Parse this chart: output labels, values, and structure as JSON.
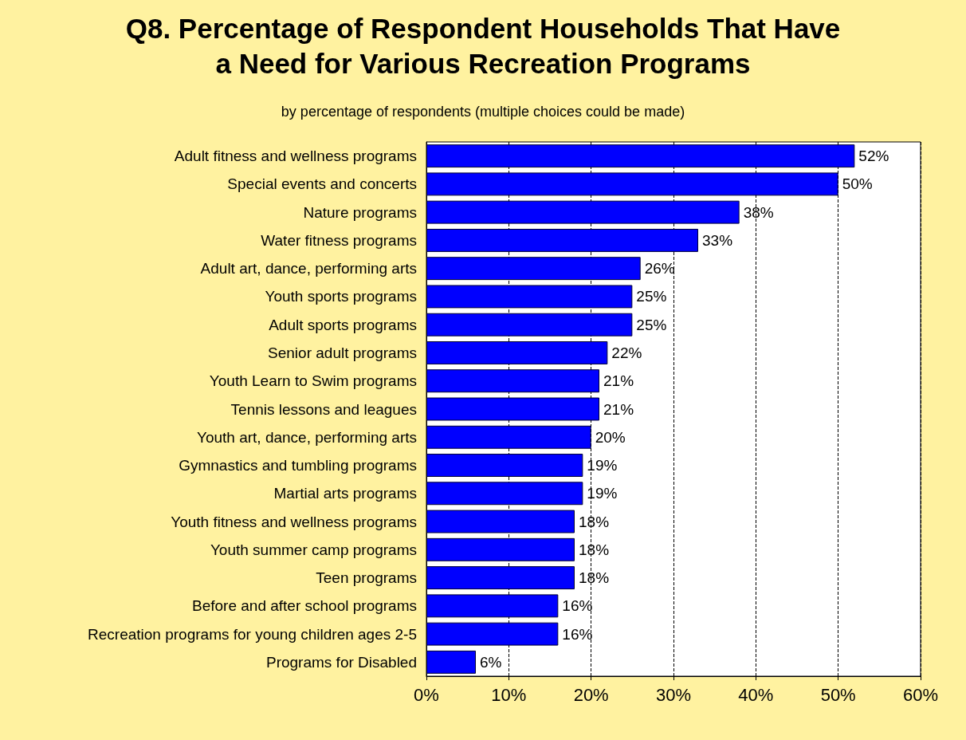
{
  "chart_data": {
    "type": "bar",
    "orientation": "horizontal",
    "title": "Q8. Percentage of Respondent Households That Have\na Need for Various Recreation Programs",
    "subtitle": "by percentage of respondents (multiple choices could be made)",
    "categories": [
      "Adult fitness and wellness programs",
      "Special events and concerts",
      "Nature programs",
      "Water fitness programs",
      "Adult art, dance, performing arts",
      "Youth sports programs",
      "Adult sports programs",
      "Senior adult programs",
      "Youth Learn to Swim programs",
      "Tennis lessons and leagues",
      "Youth art, dance, performing arts",
      "Gymnastics and tumbling programs",
      "Martial arts programs",
      "Youth fitness and wellness programs",
      "Youth summer camp programs",
      "Teen programs",
      "Before and after school programs",
      "Recreation programs for young children ages 2-5",
      "Programs for Disabled"
    ],
    "values": [
      52,
      50,
      38,
      33,
      26,
      25,
      25,
      22,
      21,
      21,
      20,
      19,
      19,
      18,
      18,
      18,
      16,
      16,
      6
    ],
    "value_labels": [
      "52%",
      "50%",
      "38%",
      "33%",
      "26%",
      "25%",
      "25%",
      "22%",
      "21%",
      "21%",
      "20%",
      "19%",
      "19%",
      "18%",
      "18%",
      "18%",
      "16%",
      "16%",
      "6%"
    ],
    "color": "#0000ff",
    "xlim": [
      0,
      60
    ],
    "xticks": [
      {
        "value": 0,
        "label": "0%"
      },
      {
        "value": 10,
        "label": "10%"
      },
      {
        "value": 20,
        "label": "20%"
      },
      {
        "value": 30,
        "label": "30%"
      },
      {
        "value": 40,
        "label": "40%"
      },
      {
        "value": 50,
        "label": "50%"
      },
      {
        "value": 60,
        "label": "60%"
      }
    ],
    "grid": "x"
  }
}
